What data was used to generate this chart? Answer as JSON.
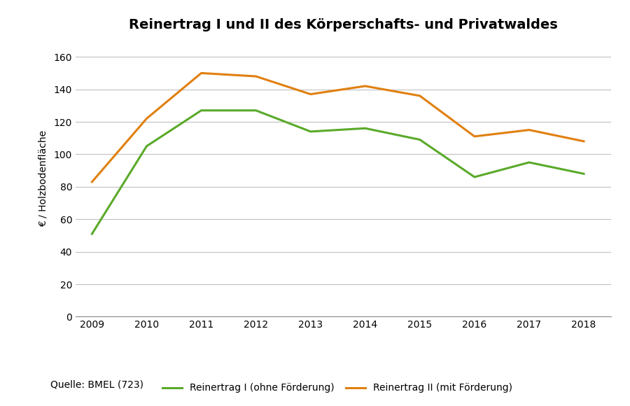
{
  "title": "Reinertrag I und II des Körperschafts- und Privatwaldes",
  "years": [
    2009,
    2010,
    2011,
    2012,
    2013,
    2014,
    2015,
    2016,
    2017,
    2018
  ],
  "reinertrag_ohne": [
    51,
    105,
    127,
    127,
    114,
    116,
    109,
    86,
    95,
    88
  ],
  "reinertrag_mit": [
    83,
    122,
    150,
    148,
    137,
    142,
    136,
    111,
    115,
    108
  ],
  "color_ohne": "#5aaa2a",
  "color_mit": "#e08010",
  "ylabel": "€ / Holzbodenfläche",
  "ylim": [
    0,
    170
  ],
  "yticks": [
    0,
    20,
    40,
    60,
    80,
    100,
    120,
    140,
    160
  ],
  "legend_ohne": "Reinertrag I (ohne Förderung)",
  "legend_mit": "Reinertrag II (mit Förderung)",
  "source": "Quelle: BMEL (723)",
  "background_color": "#ffffff",
  "grid_color": "#c0c0c0",
  "title_fontsize": 14,
  "tick_fontsize": 10,
  "legend_fontsize": 10,
  "source_fontsize": 10
}
